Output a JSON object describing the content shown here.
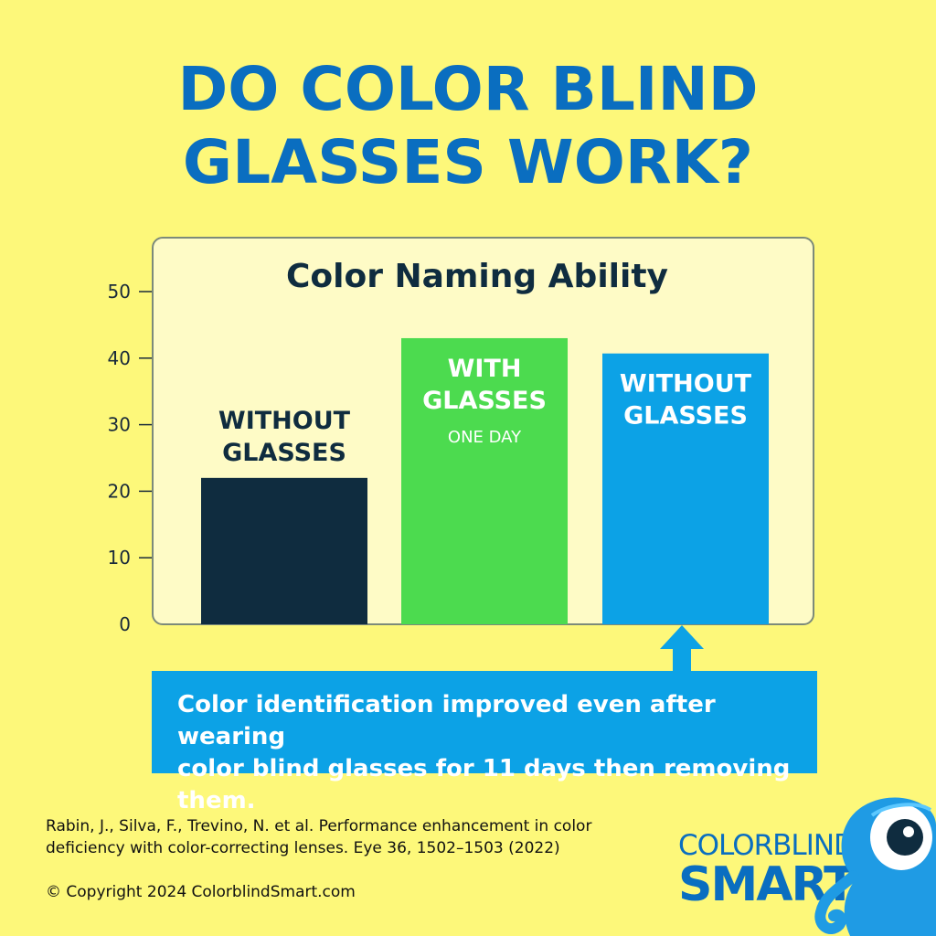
{
  "headline": {
    "line1": "DO COLOR BLIND",
    "line2": "GLASSES WORK?"
  },
  "chart_data": {
    "type": "bar",
    "title": "Color Naming Ability",
    "xlabel": "",
    "ylabel": "",
    "ylim": [
      0,
      50
    ],
    "yticks": [
      0,
      10,
      20,
      30,
      40,
      50
    ],
    "grid": false,
    "bars": [
      {
        "label_lines": [
          "WITHOUT",
          "GLASSES"
        ],
        "sublabel": "",
        "value": 22,
        "color": "#0f2c3f",
        "label_color": "#0f2c3f",
        "label_position": "above"
      },
      {
        "label_lines": [
          "WITH",
          "GLASSES"
        ],
        "sublabel": "ONE DAY",
        "value": 43,
        "color": "#4cdb4f",
        "label_color": "#ffffff",
        "label_position": "inside"
      },
      {
        "label_lines": [
          "WITHOUT",
          "GLASSES"
        ],
        "sublabel": "",
        "value": 40.7,
        "color": "#0ca2e6",
        "label_color": "#ffffff",
        "label_position": "inside"
      }
    ]
  },
  "callout": {
    "line1": "Color identification improved even after wearing",
    "line2": "color blind glasses for 11 days then removing them."
  },
  "citation": {
    "line1": "Rabin, J., Silva, F., Trevino, N. et al. Performance enhancement in color",
    "line2": "deficiency with color-correcting lenses. Eye 36, 1502–1503 (2022)"
  },
  "copyright": "© Copyright 2024 ColorblindSmart.com",
  "logo": {
    "top": "COLORBLIND",
    "bottom": "SMART"
  },
  "colors": {
    "background": "#fdf87a",
    "headline": "#0a6ec0",
    "panel": "#fefbc6",
    "callout": "#0ca2e6"
  },
  "icons": {
    "arrow": "arrow-up-icon",
    "mascot": "octopus-mascot-icon"
  }
}
